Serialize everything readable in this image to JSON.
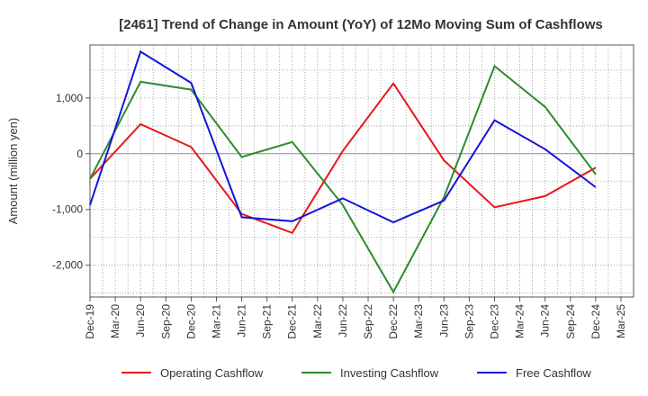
{
  "chart_data": {
    "type": "line",
    "title": "[2461]  Trend of Change in Amount (YoY) of 12Mo Moving Sum of Cashflows",
    "xlabel": "",
    "ylabel": "Amount (million yen)",
    "categories": [
      "Dec-19",
      "Mar-20",
      "Jun-20",
      "Sep-20",
      "Dec-20",
      "Mar-21",
      "Jun-21",
      "Sep-21",
      "Dec-21",
      "Mar-22",
      "Jun-22",
      "Sep-22",
      "Dec-22",
      "Mar-23",
      "Jun-23",
      "Sep-23",
      "Dec-23",
      "Mar-24",
      "Jun-24",
      "Sep-24",
      "Dec-24",
      "Mar-25"
    ],
    "ylim": [
      -2570,
      1950
    ],
    "yticks": [
      1000,
      0,
      -1000,
      -2000
    ],
    "ytick_labels": [
      "1,000",
      "0",
      "-1,000",
      "-2,000"
    ],
    "grid": true,
    "legend_position": "bottom",
    "series": [
      {
        "name": "Operating Cashflow",
        "color": "#e8171a",
        "x": [
          "Dec-19",
          "Jun-20",
          "Dec-20",
          "Jun-21",
          "Dec-21",
          "Jun-22",
          "Dec-22",
          "Jun-23",
          "Dec-23",
          "Jun-24",
          "Dec-24"
        ],
        "values": [
          -450,
          530,
          120,
          -1080,
          -1420,
          50,
          1260,
          -120,
          -960,
          -760,
          -250
        ]
      },
      {
        "name": "Investing Cashflow",
        "color": "#2e8b2e",
        "x": [
          "Dec-19",
          "Jun-20",
          "Dec-20",
          "Jun-21",
          "Dec-21",
          "Jun-22",
          "Dec-22",
          "Jun-23",
          "Dec-23",
          "Jun-24",
          "Dec-24"
        ],
        "values": [
          -450,
          1290,
          1150,
          -60,
          210,
          -920,
          -2480,
          -780,
          1570,
          840,
          -370
        ]
      },
      {
        "name": "Free Cashflow",
        "color": "#1515d9",
        "x": [
          "Dec-19",
          "Jun-20",
          "Dec-20",
          "Jun-21",
          "Dec-21",
          "Jun-22",
          "Dec-22",
          "Jun-23",
          "Dec-23",
          "Jun-24",
          "Dec-24"
        ],
        "values": [
          -920,
          1830,
          1270,
          -1140,
          -1210,
          -800,
          -1230,
          -840,
          600,
          80,
          -600
        ]
      }
    ]
  }
}
